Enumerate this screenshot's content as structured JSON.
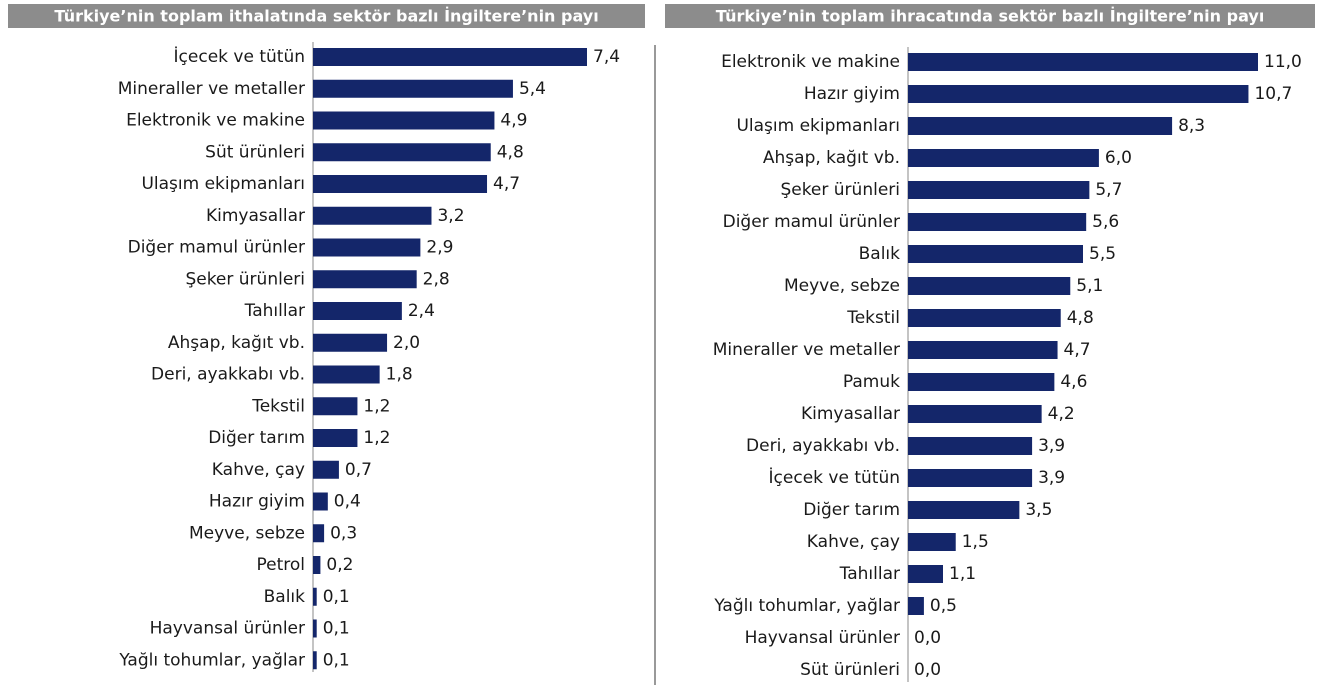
{
  "chart_data": [
    {
      "type": "bar",
      "orientation": "horizontal",
      "title": "Türkiye’nin toplam ithalatında sektör bazlı İngiltere’nin payı",
      "color": "#14266a",
      "categories": [
        "İçecek ve tütün",
        "Mineraller ve metaller",
        "Elektronik ve makine",
        "Süt ürünleri",
        "Ulaşım ekipmanları",
        "Kimyasallar",
        "Diğer mamul ürünler",
        "Şeker ürünleri",
        "Tahıllar",
        "Ahşap, kağıt vb.",
        "Deri, ayakkabı vb.",
        "Tekstil",
        "Diğer tarım",
        "Kahve, çay",
        "Hazır giyim",
        "Meyve, sebze",
        "Petrol",
        "Balık",
        "Hayvansal ürünler",
        "Yağlı tohumlar, yağlar"
      ],
      "values": [
        7.4,
        5.4,
        4.9,
        4.8,
        4.7,
        3.2,
        2.9,
        2.8,
        2.4,
        2.0,
        1.8,
        1.2,
        1.2,
        0.7,
        0.4,
        0.3,
        0.2,
        0.1,
        0.1,
        0.1
      ],
      "value_labels": [
        "7,4",
        "5,4",
        "4,9",
        "4,8",
        "4,7",
        "3,2",
        "2,9",
        "2,8",
        "2,4",
        "2,0",
        "1,8",
        "1,2",
        "1,2",
        "0,7",
        "0,4",
        "0,3",
        "0,2",
        "0,1",
        "0,1",
        "0,1"
      ]
    },
    {
      "type": "bar",
      "orientation": "horizontal",
      "title": "Türkiye’nin toplam ihracatında sektör bazlı İngiltere’nin payı",
      "color": "#14266a",
      "categories": [
        "Elektronik ve makine",
        "Hazır giyim",
        "Ulaşım ekipmanları",
        "Ahşap, kağıt vb.",
        "Şeker ürünleri",
        "Diğer mamul ürünler",
        "Balık",
        "Meyve, sebze",
        "Tekstil",
        "Mineraller ve metaller",
        "Pamuk",
        "Kimyasallar",
        "Deri, ayakkabı vb.",
        "İçecek ve tütün",
        "Diğer tarım",
        "Kahve, çay",
        "Tahıllar",
        "Yağlı tohumlar, yağlar",
        "Hayvansal ürünler",
        "Süt ürünleri"
      ],
      "values": [
        11.0,
        10.7,
        8.3,
        6.0,
        5.7,
        5.6,
        5.5,
        5.1,
        4.8,
        4.7,
        4.6,
        4.2,
        3.9,
        3.9,
        3.5,
        1.5,
        1.1,
        0.5,
        0.0,
        0.0
      ],
      "value_labels": [
        "11,0",
        "10,7",
        "8,3",
        "6,0",
        "5,7",
        "5,6",
        "5,5",
        "5,1",
        "4,8",
        "4,7",
        "4,6",
        "4,2",
        "3,9",
        "3,9",
        "3,5",
        "1,5",
        "1,1",
        "0,5",
        "0,0",
        "0,0"
      ]
    }
  ]
}
